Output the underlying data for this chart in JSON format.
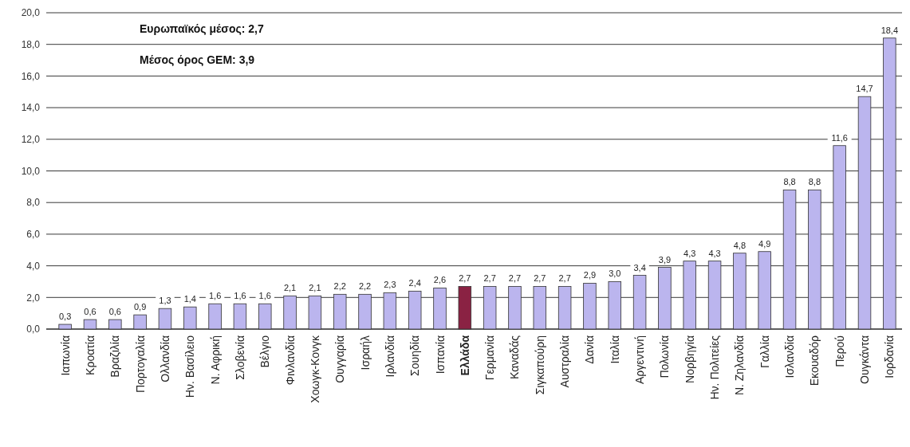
{
  "chart_data": {
    "type": "bar",
    "categories": [
      "Ιαπωνία",
      "Κροατία",
      "Βραζιλία",
      "Πορτογαλία",
      "Ολλανδία",
      "Ην. Βασίλειο",
      "Ν. Αφρική",
      "Σλοβενία",
      "Βέλγιο",
      "Φινλανδία",
      "Χοωγκ-Κονγκ",
      "Ουγγαρία",
      "Ισραήλ",
      "Ιρλανδία",
      "Σουηδία",
      "Ισπανία",
      "Ελλάδα",
      "Γερμανία",
      "Καναδάς",
      "Σιγκαπούρη",
      "Αυστραλία",
      "Δανία",
      "Ιταλία",
      "Αργεντινή",
      "Πολωνία",
      "Νορβηγία",
      "Ην. Πολιτείες",
      "Ν. Ζηλανδία",
      "Γαλλία",
      "Ισλανδία",
      "Εκουαδόρ",
      "Περού",
      "Ουγκάντα",
      "Ιορδανία"
    ],
    "values": [
      0.3,
      0.6,
      0.6,
      0.9,
      1.3,
      1.4,
      1.6,
      1.6,
      1.6,
      2.1,
      2.1,
      2.2,
      2.2,
      2.3,
      2.4,
      2.6,
      2.7,
      2.7,
      2.7,
      2.7,
      2.7,
      2.9,
      3.0,
      3.4,
      3.9,
      4.3,
      4.3,
      4.8,
      4.9,
      8.8,
      8.8,
      11.6,
      14.7,
      18.4
    ],
    "value_labels": [
      "0,3",
      "0,6",
      "0,6",
      "0,9",
      "1,3",
      "1,4",
      "1,6",
      "1,6",
      "1,6",
      "2,1",
      "2,1",
      "2,2",
      "2,2",
      "2,3",
      "2,4",
      "2,6",
      "2,7",
      "2,7",
      "2,7",
      "2,7",
      "2,7",
      "2,9",
      "3,0",
      "3,4",
      "3,9",
      "4,3",
      "4,3",
      "4,8",
      "4,9",
      "8,8",
      "8,8",
      "11,6",
      "14,7",
      "18,4"
    ],
    "colors": [
      "#bbb5ee",
      "#bbb5ee",
      "#bbb5ee",
      "#bbb5ee",
      "#bbb5ee",
      "#bbb5ee",
      "#bbb5ee",
      "#bbb5ee",
      "#bbb5ee",
      "#bbb5ee",
      "#bbb5ee",
      "#bbb5ee",
      "#bbb5ee",
      "#bbb5ee",
      "#bbb5ee",
      "#bbb5ee",
      "#8a2243",
      "#bbb5ee",
      "#bbb5ee",
      "#bbb5ee",
      "#bbb5ee",
      "#bbb5ee",
      "#bbb5ee",
      "#bbb5ee",
      "#bbb5ee",
      "#bbb5ee",
      "#bbb5ee",
      "#bbb5ee",
      "#bbb5ee",
      "#bbb5ee",
      "#bbb5ee",
      "#bbb5ee",
      "#bbb5ee",
      "#bbb5ee"
    ],
    "ylim": [
      0,
      20
    ],
    "yticks": [
      {
        "value": 0,
        "label": "0,0"
      },
      {
        "value": 2,
        "label": "2,0"
      },
      {
        "value": 4,
        "label": "4,0"
      },
      {
        "value": 6,
        "label": "6,0"
      },
      {
        "value": 8,
        "label": "8,0"
      },
      {
        "value": 10,
        "label": "10,0"
      },
      {
        "value": 12,
        "label": "12,0"
      },
      {
        "value": 14,
        "label": "14,0"
      },
      {
        "value": 16,
        "label": "16,0"
      },
      {
        "value": 18,
        "label": "18,0"
      },
      {
        "value": 20,
        "label": "20,0"
      }
    ],
    "grid": "y",
    "annotations": [
      "Ευρωπαϊκός μέσος: 2,7",
      "Μέσος όρος GEM: 3,9"
    ]
  }
}
